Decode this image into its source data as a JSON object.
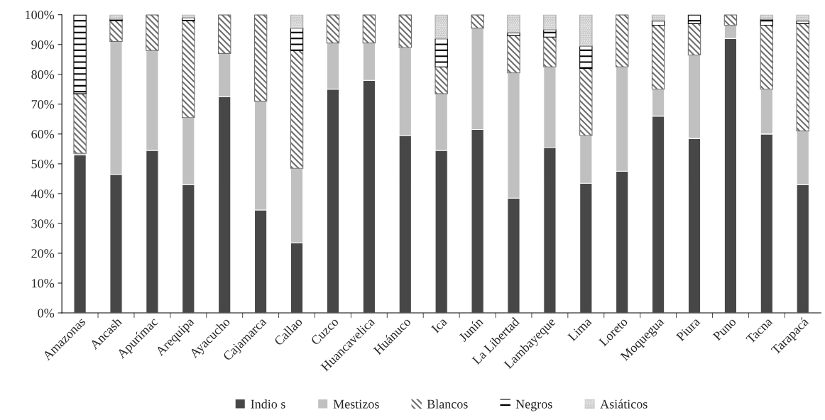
{
  "chart_data": {
    "type": "bar",
    "stacked": true,
    "categories": [
      "Amazonas",
      "Ancash",
      "Apurímac",
      "Arequipa",
      "Ayacucho",
      "Cajamarca",
      "Callao",
      "Cuzco",
      "Huancavelica",
      "Huánuco",
      "Ica",
      "Junín",
      "La Libertad",
      "Lambayeque",
      "Lima",
      "Loreto",
      "Moquegua",
      "Piura",
      "Puno",
      "Tacna",
      "Tarapacá"
    ],
    "series": [
      {
        "name": "Indio s",
        "color": "#474747",
        "values": [
          53,
          46.5,
          54.5,
          43,
          72.5,
          34.5,
          23.5,
          75,
          78,
          59.5,
          54.5,
          61.5,
          38.5,
          55.5,
          43.5,
          47.5,
          66,
          58.5,
          92,
          60,
          43
        ]
      },
      {
        "name": "Mestizos",
        "color": "#c0c0c0",
        "values": [
          0.5,
          44.5,
          33.5,
          22.5,
          14.5,
          36.5,
          25,
          15.5,
          12.5,
          29.5,
          19,
          34,
          42,
          27,
          16,
          35,
          9,
          28,
          4.5,
          15,
          18
        ]
      },
      {
        "name": "Blancos",
        "color": "#6e6e6e",
        "values": [
          20,
          7,
          12,
          32.5,
          13,
          29,
          39.5,
          9.5,
          9.5,
          11,
          9,
          4.5,
          12.5,
          10,
          22.5,
          17.5,
          21.5,
          10.5,
          3.5,
          21.5,
          36
        ]
      },
      {
        "name": "Negros",
        "color": "#000000",
        "values": [
          26.5,
          0.5,
          0,
          1,
          0,
          0,
          7.5,
          0,
          0,
          0,
          9.5,
          0,
          1,
          2.5,
          7.5,
          0,
          1.5,
          3,
          0,
          2,
          1
        ]
      },
      {
        "name": "Asiáticos",
        "color": "#a8a8a8",
        "values": [
          0,
          1.5,
          0,
          1,
          0,
          0,
          4.5,
          0,
          0,
          0,
          8,
          0,
          6,
          5,
          10.5,
          0,
          2,
          0,
          0,
          1.5,
          2
        ]
      }
    ],
    "ylim": [
      0,
      100
    ],
    "yticks": [
      {
        "value": 0,
        "label": "0%"
      },
      {
        "value": 10,
        "label": "10%"
      },
      {
        "value": 20,
        "label": "20%"
      },
      {
        "value": 30,
        "label": "30%"
      },
      {
        "value": 40,
        "label": "40%"
      },
      {
        "value": 50,
        "label": "50%"
      },
      {
        "value": 60,
        "label": "60%"
      },
      {
        "value": 70,
        "label": "70%"
      },
      {
        "value": 80,
        "label": "80%"
      },
      {
        "value": 90,
        "label": "90%"
      },
      {
        "value": 100,
        "label": "100%"
      }
    ],
    "grid": false,
    "legend": "bottom"
  }
}
